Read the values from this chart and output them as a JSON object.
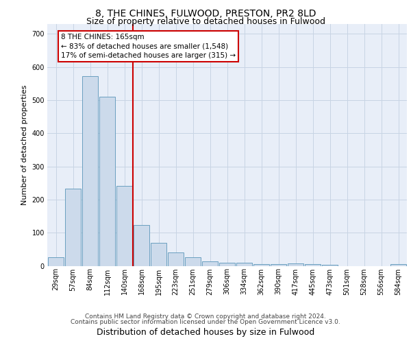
{
  "title_line1": "8, THE CHINES, FULWOOD, PRESTON, PR2 8LD",
  "title_line2": "Size of property relative to detached houses in Fulwood",
  "xlabel": "Distribution of detached houses by size in Fulwood",
  "ylabel": "Number of detached properties",
  "bar_color": "#ccdaeb",
  "bar_edge_color": "#6a9fc0",
  "vline_color": "#cc0000",
  "vline_index": 5,
  "annotation_text": "8 THE CHINES: 165sqm\n← 83% of detached houses are smaller (1,548)\n17% of semi-detached houses are larger (315) →",
  "annotation_box_facecolor": "#ffffff",
  "annotation_box_edgecolor": "#cc0000",
  "categories": [
    "29sqm",
    "57sqm",
    "84sqm",
    "112sqm",
    "140sqm",
    "168sqm",
    "195sqm",
    "223sqm",
    "251sqm",
    "279sqm",
    "306sqm",
    "334sqm",
    "362sqm",
    "390sqm",
    "417sqm",
    "445sqm",
    "473sqm",
    "501sqm",
    "528sqm",
    "556sqm",
    "584sqm"
  ],
  "values": [
    26,
    232,
    572,
    510,
    242,
    123,
    70,
    40,
    25,
    13,
    10,
    10,
    5,
    5,
    7,
    5,
    4,
    0,
    0,
    0,
    6
  ],
  "ylim": [
    0,
    730
  ],
  "yticks": [
    0,
    100,
    200,
    300,
    400,
    500,
    600,
    700
  ],
  "grid_color": "#c8d4e4",
  "plot_bg": "#e8eef8",
  "footer1": "Contains HM Land Registry data © Crown copyright and database right 2024.",
  "footer2": "Contains public sector information licensed under the Open Government Licence v3.0.",
  "title1_fontsize": 10,
  "title2_fontsize": 9,
  "ylabel_fontsize": 8,
  "xlabel_fontsize": 9,
  "tick_fontsize": 7,
  "footer_fontsize": 6.5,
  "ann_fontsize": 7.5
}
